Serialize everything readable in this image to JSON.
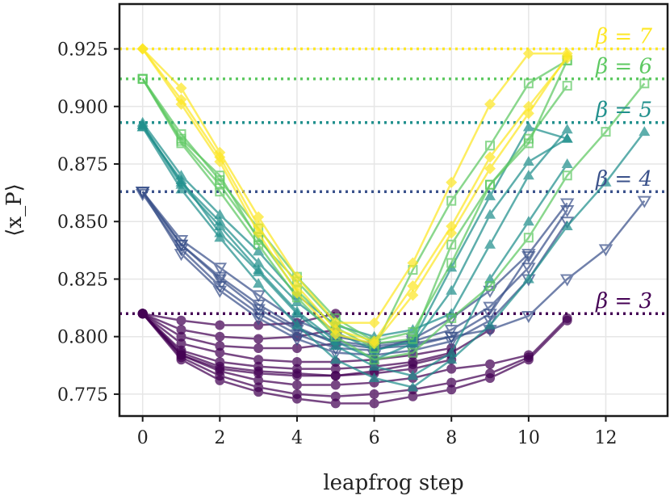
{
  "chart_data": {
    "type": "line",
    "title": "",
    "xlabel": "leapfrog step",
    "ylabel": "⟨x_P⟩",
    "xlim": [
      -0.6,
      13.6
    ],
    "ylim": [
      0.7655,
      0.9445
    ],
    "xticks": [
      0,
      2,
      4,
      6,
      8,
      10,
      12
    ],
    "yticks": [
      0.775,
      0.8,
      0.825,
      0.85,
      0.875,
      0.9,
      0.925
    ],
    "ytick_labels": [
      "0.775",
      "0.800",
      "0.825",
      "0.850",
      "0.875",
      "0.900",
      "0.925"
    ],
    "grid": true,
    "references": [
      {
        "beta": "β = 3",
        "value": 0.81,
        "color": "#440154"
      },
      {
        "beta": "β = 4",
        "value": 0.863,
        "color": "#3b528b"
      },
      {
        "beta": "β = 5",
        "value": 0.893,
        "color": "#21908d"
      },
      {
        "beta": "β = 6",
        "value": 0.912,
        "color": "#5ec962"
      },
      {
        "beta": "β = 7",
        "value": 0.925,
        "color": "#fde725"
      }
    ],
    "series": [
      {
        "name": "β = 3",
        "color": "#440154",
        "marker": "circle",
        "x": [
          0,
          1,
          2,
          3,
          4,
          5
        ],
        "values": [
          0.81,
          0.807,
          0.805,
          0.805,
          0.806,
          0.81
        ]
      },
      {
        "name": "β = 3",
        "color": "#440154",
        "marker": "circle",
        "x": [
          0,
          1,
          2,
          3,
          4,
          5
        ],
        "values": [
          0.81,
          0.803,
          0.8,
          0.799,
          0.8,
          0.803
        ]
      },
      {
        "name": "β = 3",
        "color": "#440154",
        "marker": "circle",
        "x": [
          0,
          1,
          2,
          3,
          4,
          5
        ],
        "values": [
          0.81,
          0.8,
          0.796,
          0.795,
          0.795,
          0.797
        ]
      },
      {
        "name": "β = 3",
        "color": "#440154",
        "marker": "circle",
        "x": [
          0,
          1,
          2,
          3,
          4,
          5,
          6,
          7,
          8
        ],
        "values": [
          0.81,
          0.797,
          0.793,
          0.79,
          0.789,
          0.789,
          0.79,
          0.792,
          0.795
        ]
      },
      {
        "name": "β = 3",
        "color": "#440154",
        "marker": "circle",
        "x": [
          0,
          1,
          2,
          3,
          4,
          5,
          6,
          7,
          8,
          9
        ],
        "values": [
          0.81,
          0.794,
          0.789,
          0.787,
          0.786,
          0.786,
          0.787,
          0.789,
          0.793,
          0.803
        ]
      },
      {
        "name": "β = 3",
        "color": "#440154",
        "marker": "circle",
        "x": [
          0,
          1,
          2,
          3,
          4,
          5,
          6,
          7,
          8
        ],
        "values": [
          0.81,
          0.792,
          0.786,
          0.784,
          0.783,
          0.783,
          0.785,
          0.788,
          0.792
        ]
      },
      {
        "name": "β = 3",
        "color": "#440154",
        "marker": "circle",
        "x": [
          0,
          1,
          2,
          3,
          4,
          5,
          6,
          7,
          8
        ],
        "values": [
          0.81,
          0.793,
          0.787,
          0.785,
          0.784,
          0.783,
          0.784,
          0.786,
          0.79
        ]
      },
      {
        "name": "β = 3",
        "color": "#440154",
        "marker": "circle",
        "x": [
          0,
          1,
          2,
          3,
          4,
          5,
          6,
          7,
          8,
          9,
          10
        ],
        "values": [
          0.81,
          0.792,
          0.785,
          0.781,
          0.779,
          0.779,
          0.78,
          0.782,
          0.786,
          0.788,
          0.792
        ]
      },
      {
        "name": "β = 3",
        "color": "#440154",
        "marker": "circle",
        "x": [
          0,
          1,
          2,
          3,
          4,
          5,
          6,
          7,
          8,
          9,
          10,
          11
        ],
        "values": [
          0.81,
          0.791,
          0.783,
          0.778,
          0.775,
          0.774,
          0.775,
          0.777,
          0.78,
          0.784,
          0.791,
          0.808
        ]
      },
      {
        "name": "β = 3",
        "color": "#440154",
        "marker": "circle",
        "x": [
          0,
          1,
          2,
          3,
          4,
          5,
          6,
          7,
          8,
          9,
          10,
          11
        ],
        "values": [
          0.81,
          0.79,
          0.781,
          0.776,
          0.773,
          0.771,
          0.771,
          0.774,
          0.777,
          0.782,
          0.79,
          0.807
        ]
      },
      {
        "name": "β = 4",
        "color": "#3b528b",
        "marker": "triangle-down",
        "x": [
          0,
          1,
          2,
          3,
          4,
          5,
          6,
          7,
          8,
          9,
          10,
          11,
          12,
          13
        ],
        "values": [
          0.863,
          0.84,
          0.825,
          0.812,
          0.803,
          0.798,
          0.796,
          0.797,
          0.8,
          0.803,
          0.809,
          0.825,
          0.838,
          0.859
        ]
      },
      {
        "name": "β = 4",
        "color": "#3b528b",
        "marker": "triangle-down",
        "x": [
          0,
          1,
          2,
          3,
          4,
          5,
          6,
          7,
          8,
          9,
          10,
          11
        ],
        "values": [
          0.863,
          0.842,
          0.83,
          0.818,
          0.807,
          0.8,
          0.797,
          0.798,
          0.803,
          0.813,
          0.83,
          0.855
        ]
      },
      {
        "name": "β = 4",
        "color": "#3b528b",
        "marker": "triangle-down",
        "x": [
          0,
          1,
          2,
          3,
          4,
          5,
          6,
          7,
          8,
          9,
          10,
          11
        ],
        "values": [
          0.862,
          0.838,
          0.822,
          0.81,
          0.801,
          0.795,
          0.794,
          0.799,
          0.808,
          0.82,
          0.836,
          0.858
        ]
      },
      {
        "name": "β = 4",
        "color": "#3b528b",
        "marker": "triangle-down",
        "x": [
          0,
          1,
          2,
          3,
          4,
          5,
          6,
          7,
          8,
          9,
          10
        ],
        "values": [
          0.863,
          0.84,
          0.826,
          0.814,
          0.804,
          0.797,
          0.795,
          0.796,
          0.8,
          0.81,
          0.835
        ]
      },
      {
        "name": "β = 4",
        "color": "#3b528b",
        "marker": "triangle-down",
        "x": [
          0,
          1,
          2,
          3,
          4,
          5,
          6,
          7,
          8,
          9,
          10,
          11
        ],
        "values": [
          0.863,
          0.836,
          0.82,
          0.808,
          0.799,
          0.793,
          0.792,
          0.794,
          0.798,
          0.807,
          0.825,
          0.85
        ]
      },
      {
        "name": "β = 5",
        "color": "#21908d",
        "marker": "triangle-up",
        "x": [
          0,
          1,
          2,
          3,
          4,
          5,
          6,
          7,
          8,
          9,
          10,
          11
        ],
        "values": [
          0.893,
          0.87,
          0.853,
          0.837,
          0.818,
          0.805,
          0.8,
          0.803,
          0.81,
          0.84,
          0.87,
          0.89
        ]
      },
      {
        "name": "β = 5",
        "color": "#21908d",
        "marker": "triangle-up",
        "x": [
          0,
          1,
          2,
          3,
          4,
          5,
          6,
          7,
          8,
          9,
          10,
          11
        ],
        "values": [
          0.892,
          0.866,
          0.848,
          0.829,
          0.811,
          0.798,
          0.79,
          0.797,
          0.82,
          0.853,
          0.876,
          0.886
        ]
      },
      {
        "name": "β = 5",
        "color": "#21908d",
        "marker": "triangle-up",
        "x": [
          0,
          1,
          2,
          3,
          4,
          5,
          6,
          7,
          8,
          9,
          10,
          11
        ],
        "values": [
          0.891,
          0.868,
          0.845,
          0.828,
          0.81,
          0.796,
          0.787,
          0.783,
          0.793,
          0.825,
          0.85,
          0.875
        ]
      },
      {
        "name": "β = 5",
        "color": "#21908d",
        "marker": "triangle-up",
        "x": [
          0,
          1,
          2,
          3,
          4,
          5,
          6,
          7,
          8,
          9,
          10,
          11,
          12,
          13
        ],
        "values": [
          0.891,
          0.864,
          0.843,
          0.823,
          0.805,
          0.79,
          0.782,
          0.778,
          0.79,
          0.805,
          0.825,
          0.848,
          0.867,
          0.889
        ]
      },
      {
        "name": "β = 5",
        "color": "#21908d",
        "marker": "triangle-up",
        "x": [
          0,
          1,
          2,
          3,
          4,
          5,
          6,
          7,
          8,
          9,
          10,
          11
        ],
        "values": [
          0.892,
          0.867,
          0.85,
          0.832,
          0.815,
          0.802,
          0.794,
          0.798,
          0.83,
          0.861,
          0.891,
          0.886
        ]
      },
      {
        "name": "β = 6",
        "color": "#5ec962",
        "marker": "square",
        "x": [
          0,
          1,
          2,
          3,
          4,
          5,
          6,
          7,
          8,
          9,
          10,
          11
        ],
        "values": [
          0.912,
          0.888,
          0.868,
          0.847,
          0.826,
          0.808,
          0.798,
          0.802,
          0.832,
          0.866,
          0.886,
          0.909
        ]
      },
      {
        "name": "β = 6",
        "color": "#5ec962",
        "marker": "square",
        "x": [
          0,
          1,
          2,
          3,
          4,
          5,
          6,
          7,
          8,
          9,
          10,
          11
        ],
        "values": [
          0.912,
          0.885,
          0.866,
          0.843,
          0.82,
          0.804,
          0.795,
          0.829,
          0.859,
          0.883,
          0.91,
          0.92
        ]
      },
      {
        "name": "β = 6",
        "color": "#5ec962",
        "marker": "square",
        "x": [
          0,
          1,
          2,
          3,
          4,
          5,
          6,
          7,
          8,
          9,
          10,
          11,
          12,
          13
        ],
        "values": [
          0.912,
          0.884,
          0.863,
          0.84,
          0.817,
          0.8,
          0.79,
          0.793,
          0.808,
          0.822,
          0.843,
          0.87,
          0.889,
          0.91
        ]
      },
      {
        "name": "β = 6",
        "color": "#5ec962",
        "marker": "square",
        "x": [
          0,
          1,
          2,
          3,
          4,
          5,
          6,
          7,
          8,
          9,
          10,
          11
        ],
        "values": [
          0.912,
          0.886,
          0.87,
          0.842,
          0.824,
          0.806,
          0.797,
          0.799,
          0.84,
          0.866,
          0.884,
          0.92
        ]
      },
      {
        "name": "β = 7",
        "color": "#fde725",
        "marker": "diamond",
        "x": [
          0,
          1,
          2,
          3,
          4,
          5,
          6,
          7,
          8,
          9,
          10,
          11
        ],
        "values": [
          0.925,
          0.908,
          0.88,
          0.852,
          0.826,
          0.806,
          0.806,
          0.832,
          0.867,
          0.901,
          0.923,
          0.923
        ]
      },
      {
        "name": "β = 7",
        "color": "#fde725",
        "marker": "diamond",
        "x": [
          0,
          1,
          2,
          3,
          4,
          5,
          6,
          7,
          8,
          9,
          10,
          11
        ],
        "values": [
          0.925,
          0.903,
          0.878,
          0.848,
          0.822,
          0.803,
          0.798,
          0.822,
          0.848,
          0.878,
          0.9,
          0.921
        ]
      },
      {
        "name": "β = 7",
        "color": "#fde725",
        "marker": "diamond",
        "x": [
          0,
          1,
          2,
          3,
          4,
          5,
          6,
          7,
          8,
          9,
          10,
          11
        ],
        "values": [
          0.925,
          0.901,
          0.876,
          0.845,
          0.819,
          0.801,
          0.797,
          0.818,
          0.845,
          0.873,
          0.897,
          0.922
        ]
      }
    ]
  }
}
